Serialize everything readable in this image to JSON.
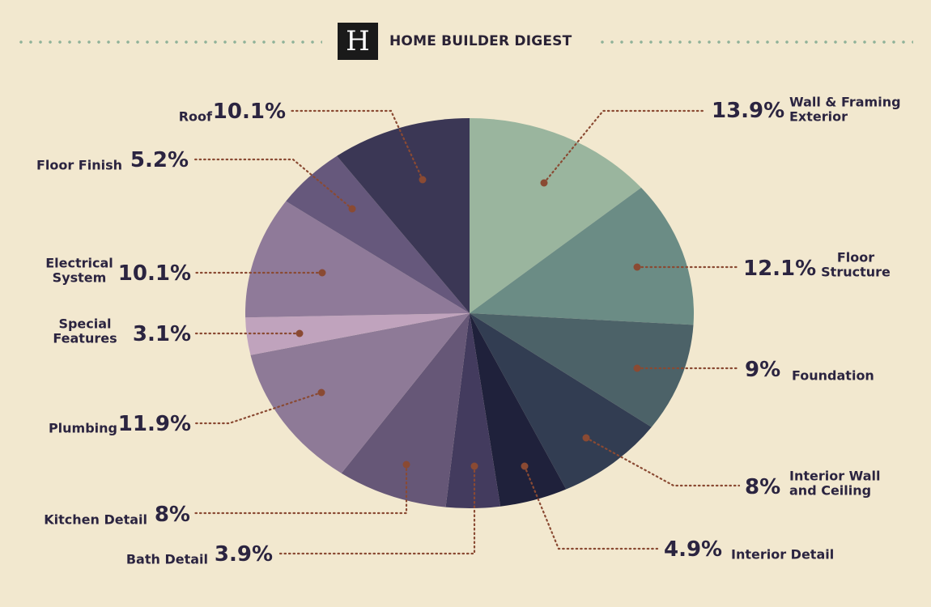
{
  "header": {
    "logo_letter": "H",
    "brand": "HOME BUILDER DIGEST"
  },
  "chart_data": {
    "type": "pie",
    "title": "",
    "slices": [
      {
        "label": "Wall & Framing Exterior",
        "label_lines": [
          "Wall & Framing",
          "Exterior"
        ],
        "value": 13.9,
        "pct_label": "13.9%",
        "color": "#9ab59e"
      },
      {
        "label": "Floor Structure",
        "label_lines": [
          "Floor",
          "Structure"
        ],
        "value": 12.1,
        "pct_label": "12.1%",
        "color": "#6b8c85"
      },
      {
        "label": "Foundation",
        "label_lines": [
          "Foundation"
        ],
        "value": 9,
        "pct_label": "9%",
        "color": "#4c6268"
      },
      {
        "label": "Interior Wall and Ceiling",
        "label_lines": [
          "Interior Wall",
          "and Ceiling"
        ],
        "value": 8,
        "pct_label": "8%",
        "color": "#323d52"
      },
      {
        "label": "Interior Detail",
        "label_lines": [
          "Interior Detail"
        ],
        "value": 4.9,
        "pct_label": "4.9%",
        "color": "#1f213b"
      },
      {
        "label": "Bath Detail",
        "label_lines": [
          "Bath Detail"
        ],
        "value": 3.9,
        "pct_label": "3.9%",
        "color": "#433b5e"
      },
      {
        "label": "Kitchen Detail",
        "label_lines": [
          "Kitchen Detail"
        ],
        "value": 8,
        "pct_label": "8%",
        "color": "#665777"
      },
      {
        "label": "Plumbing",
        "label_lines": [
          "Plumbing"
        ],
        "value": 11.9,
        "pct_label": "11.9%",
        "color": "#8e7a97"
      },
      {
        "label": "Special Features",
        "label_lines": [
          "Special",
          "Features"
        ],
        "value": 3.1,
        "pct_label": "3.1%",
        "color": "#c0a3bd"
      },
      {
        "label": "Electrical System",
        "label_lines": [
          "Electrical",
          "System"
        ],
        "value": 10.1,
        "pct_label": "10.1%",
        "color": "#8f7a99"
      },
      {
        "label": "Floor Finish",
        "label_lines": [
          "Floor Finish"
        ],
        "value": 5.2,
        "pct_label": "5.2%",
        "color": "#66587c"
      },
      {
        "label": "Roof",
        "label_lines": [
          "Roof"
        ],
        "value": 10.1,
        "pct_label": "10.1%",
        "color": "#3b3755"
      }
    ],
    "leader_color": "#8a4a33",
    "leader_style": "dotted"
  }
}
